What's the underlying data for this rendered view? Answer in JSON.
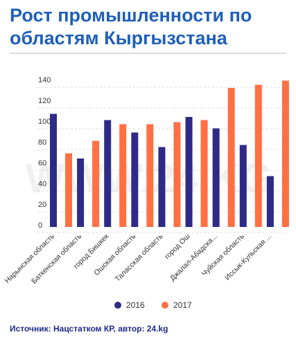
{
  "chart_data": {
    "type": "bar",
    "title": "Рост промышленности по областям Кыргызстана",
    "watermark": "WWW.24.KG",
    "categories": [
      "Нарынская область",
      "Баткенская область",
      "город Бишкек",
      "Ошская область",
      "Таласская область",
      "город Ош",
      "Джалал-Абадска...",
      "Чуйская область",
      "Иссык-Кульская ..."
    ],
    "series": [
      {
        "name": "2016",
        "color": "#2e2a86",
        "values": [
          109,
          66,
          103,
          91,
          77,
          106,
          95,
          79,
          49
        ]
      },
      {
        "name": "2017",
        "color": "#ff7043",
        "values": [
          71,
          83,
          99,
          99,
          101,
          103,
          134,
          137,
          141
        ]
      }
    ],
    "ylim": [
      0,
      150
    ],
    "yticks": [
      0,
      20,
      40,
      60,
      80,
      100,
      120,
      140
    ],
    "grid": true,
    "source": "Источник: Нацстатком КР, автор: 24.kg"
  }
}
